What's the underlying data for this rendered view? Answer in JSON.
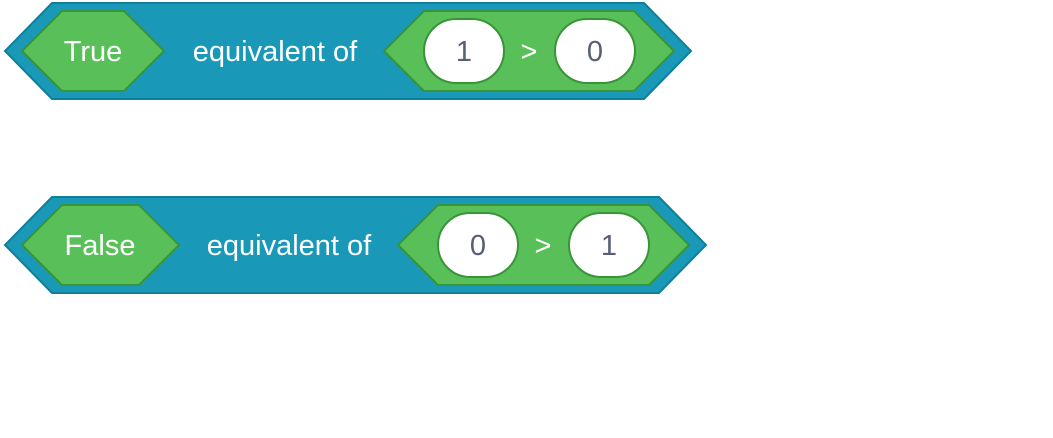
{
  "colors": {
    "outer_block": "#1a98b8",
    "outer_block_stroke": "#0f7f9c",
    "boolean_block": "#59c059",
    "boolean_block_stroke": "#389438",
    "number_slot": "#ffffff",
    "number_text": "#575e75",
    "label_text": "#ffffff"
  },
  "blocks": [
    {
      "value_label": "True",
      "mid_label": "equivalent of",
      "left_operand": "1",
      "operator": ">",
      "right_operand": "0"
    },
    {
      "value_label": "False",
      "mid_label": "equivalent of",
      "left_operand": "0",
      "operator": ">",
      "right_operand": "1"
    }
  ]
}
